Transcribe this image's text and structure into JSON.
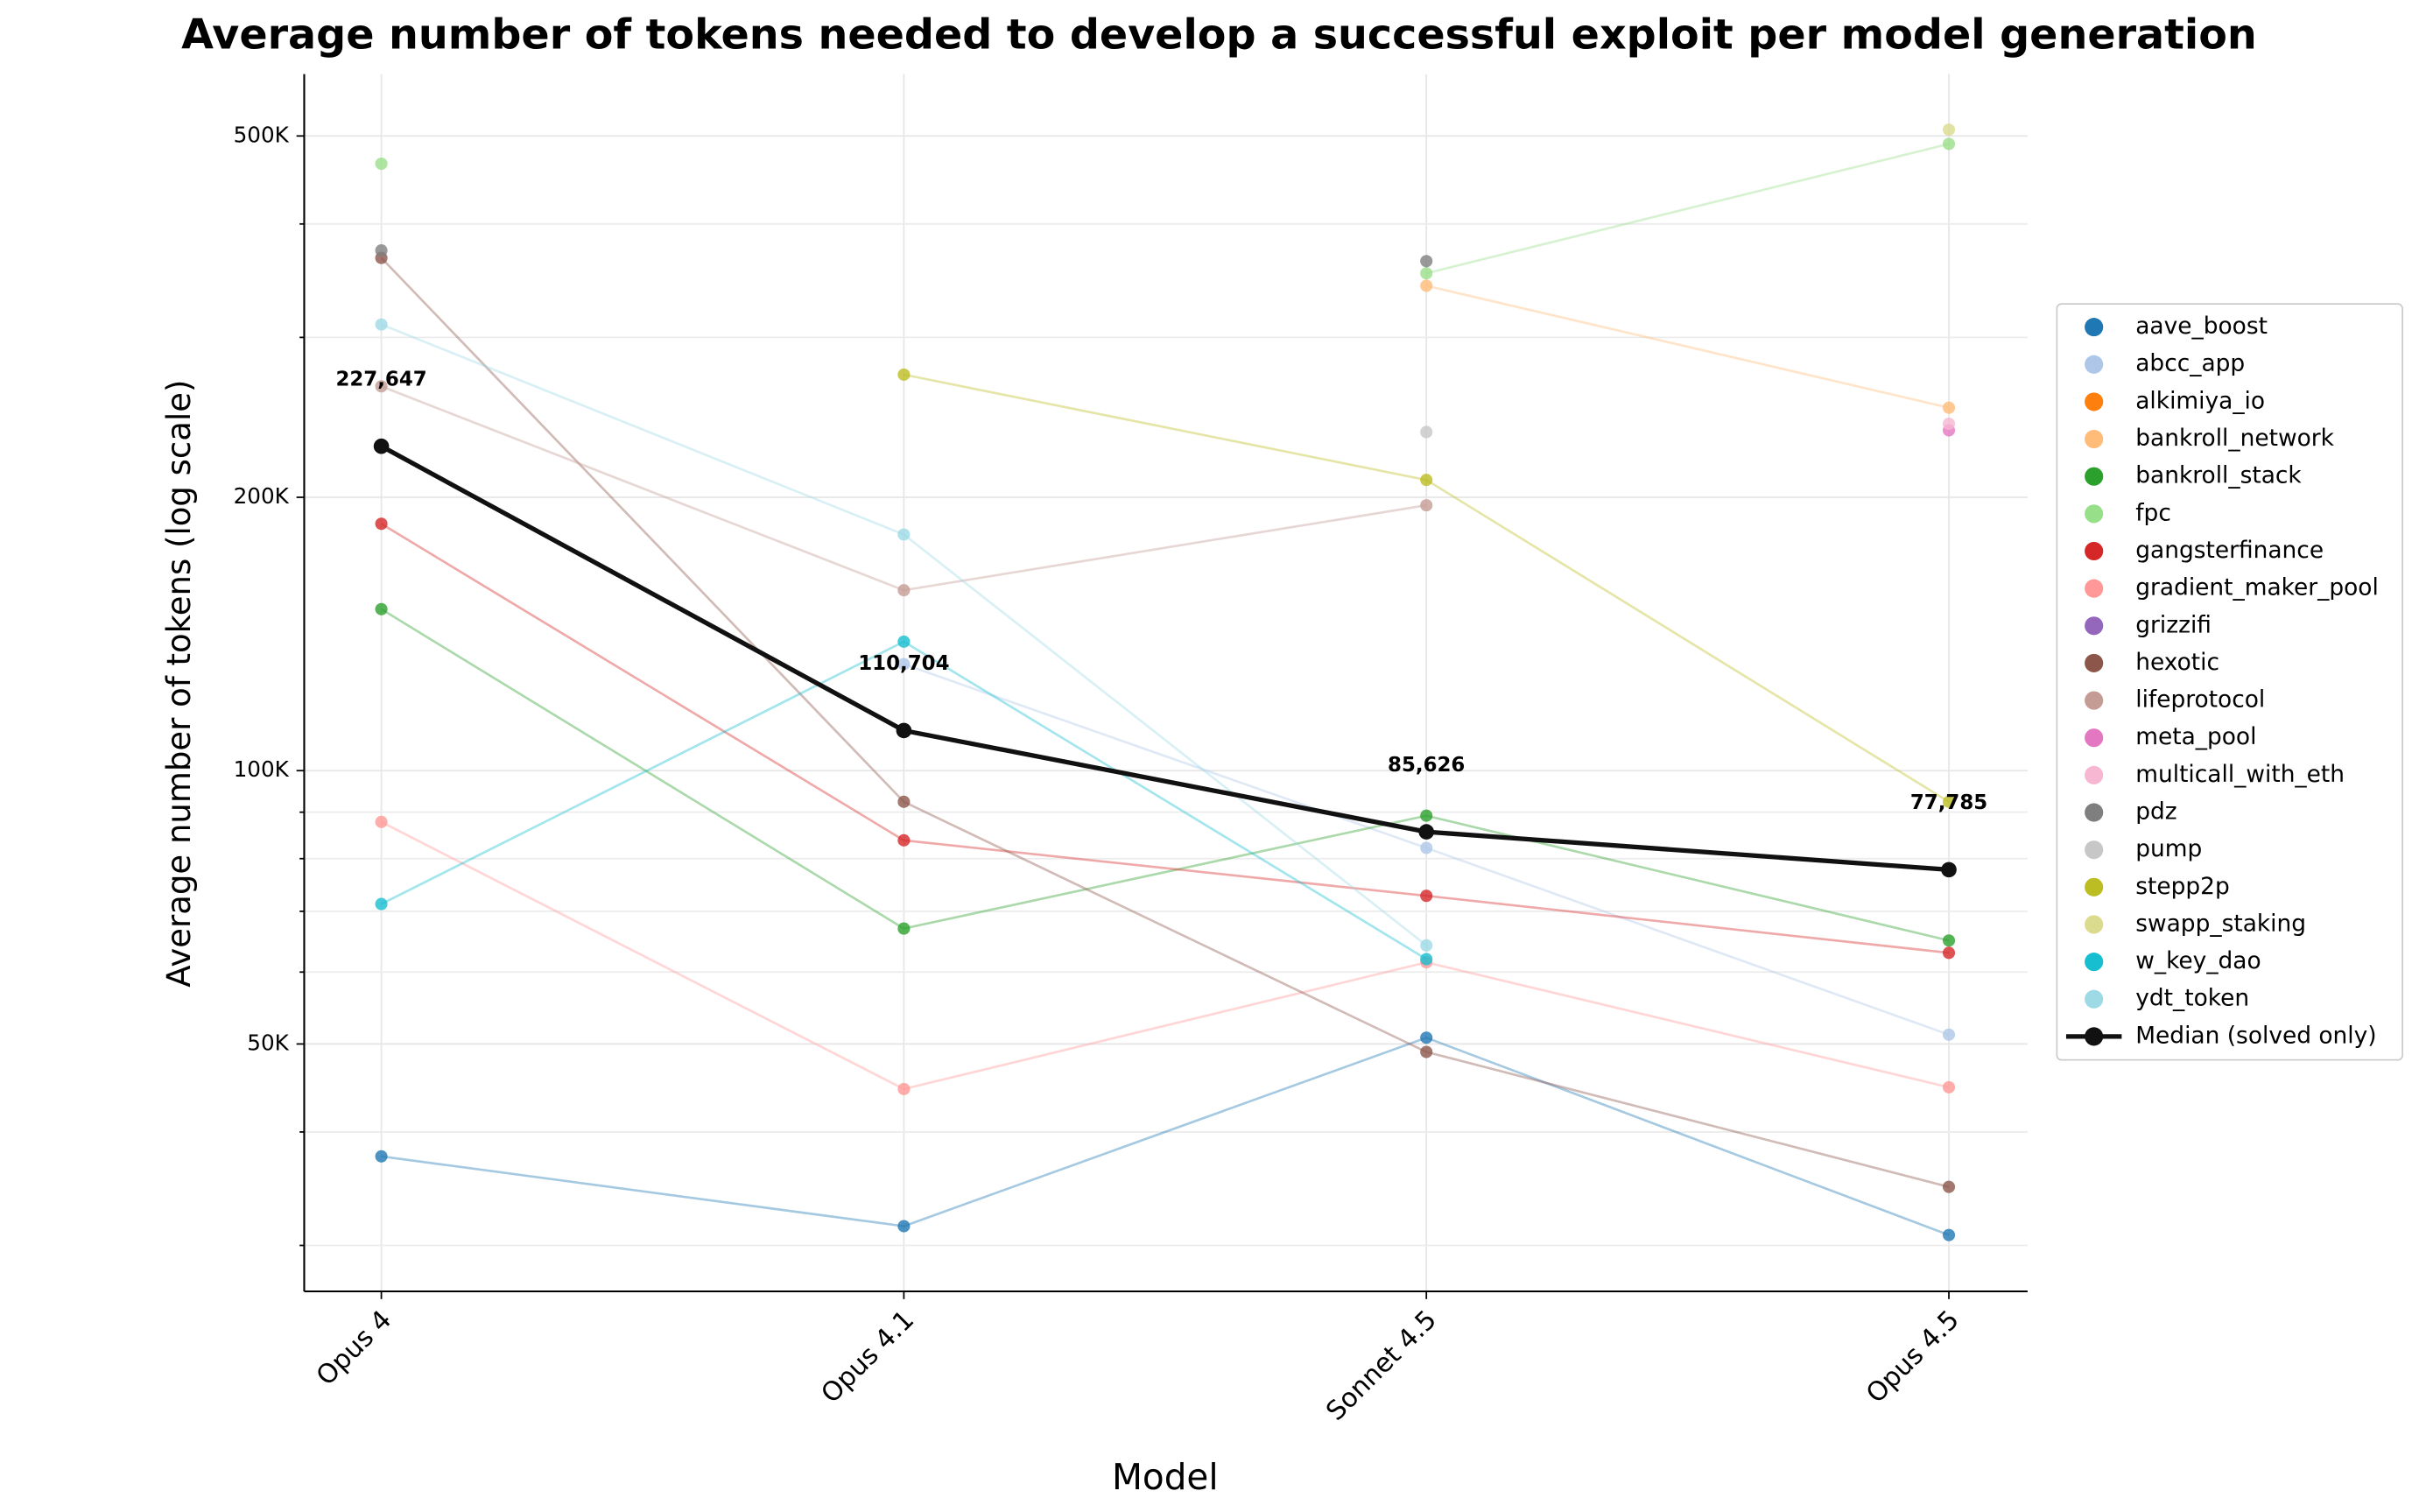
{
  "chart_data": {
    "type": "line",
    "title": "Average number of tokens needed to develop a successful exploit per model generation",
    "x_label": "Model",
    "y_label": "Average number of tokens (log scale)",
    "categories": [
      "Opus 4",
      "Opus 4.1",
      "Sonnet 4.5",
      "Opus 4.5"
    ],
    "log_y": true,
    "grid": true,
    "legend": "right",
    "ylim": [
      26700,
      585000
    ],
    "yticks": [
      {
        "value": 50000,
        "label": "50K"
      },
      {
        "value": 100000,
        "label": "100K"
      },
      {
        "value": 200000,
        "label": "200K"
      },
      {
        "value": 500000,
        "label": "500K"
      }
    ],
    "yminorticks": [
      30000,
      40000,
      60000,
      70000,
      80000,
      90000,
      300000,
      400000
    ],
    "series": [
      {
        "name": "aave_boost",
        "color": "#1f77b4",
        "values": [
          37600,
          31500,
          50800,
          30800
        ]
      },
      {
        "name": "abcc_app",
        "color": "#aec7e8",
        "values": [
          null,
          131000,
          82200,
          51200
        ]
      },
      {
        "name": "alkimiya_io",
        "color": "#ff7f0e",
        "values": [
          null,
          null,
          null,
          null
        ]
      },
      {
        "name": "bankroll_network",
        "color": "#ffbb78",
        "values": [
          null,
          null,
          342000,
          251000
        ]
      },
      {
        "name": "bankroll_stack",
        "color": "#2ca02c",
        "values": [
          150600,
          67000,
          89200,
          65000
        ]
      },
      {
        "name": "fpc",
        "color": "#98df8a",
        "values": [
          466000,
          null,
          353000,
          490000
        ]
      },
      {
        "name": "gangsterfinance",
        "color": "#d62728",
        "values": [
          187000,
          83800,
          72800,
          63000
        ]
      },
      {
        "name": "gradient_maker_pool",
        "color": "#ff9896",
        "values": [
          87800,
          44600,
          61500,
          44800
        ]
      },
      {
        "name": "grizzifi",
        "color": "#9467bd",
        "values": [
          null,
          null,
          null,
          null
        ]
      },
      {
        "name": "hexotic",
        "color": "#8c564b",
        "values": [
          367000,
          92400,
          49000,
          34800
        ]
      },
      {
        "name": "lifeprotocol",
        "color": "#c49c94",
        "values": [
          265000,
          158000,
          196000,
          null
        ]
      },
      {
        "name": "meta_pool",
        "color": "#e377c2",
        "values": [
          null,
          null,
          null,
          237000
        ]
      },
      {
        "name": "multicall_with_eth",
        "color": "#f7b6d2",
        "values": [
          null,
          null,
          null,
          241000
        ]
      },
      {
        "name": "pdz",
        "color": "#7f7f7f",
        "values": [
          374000,
          null,
          364000,
          null
        ]
      },
      {
        "name": "pump",
        "color": "#c7c7c7",
        "values": [
          null,
          null,
          236000,
          null
        ]
      },
      {
        "name": "stepp2p",
        "color": "#bcbd22",
        "values": [
          null,
          273000,
          209000,
          92400
        ]
      },
      {
        "name": "swapp_staking",
        "color": "#dbdb8d",
        "values": [
          null,
          null,
          null,
          508000
        ]
      },
      {
        "name": "w_key_dao",
        "color": "#17becf",
        "values": [
          71300,
          138700,
          62000,
          null
        ]
      },
      {
        "name": "ydt_token",
        "color": "#9edae5",
        "values": [
          310000,
          182000,
          64200,
          null
        ]
      },
      {
        "name": "Median (solved only)",
        "color": "#111111",
        "linewidth": 3,
        "values": [
          227647,
          110704,
          85626,
          77785
        ],
        "value_labels": [
          "227,647",
          "110,704",
          "85,626",
          "77,785"
        ]
      }
    ]
  }
}
